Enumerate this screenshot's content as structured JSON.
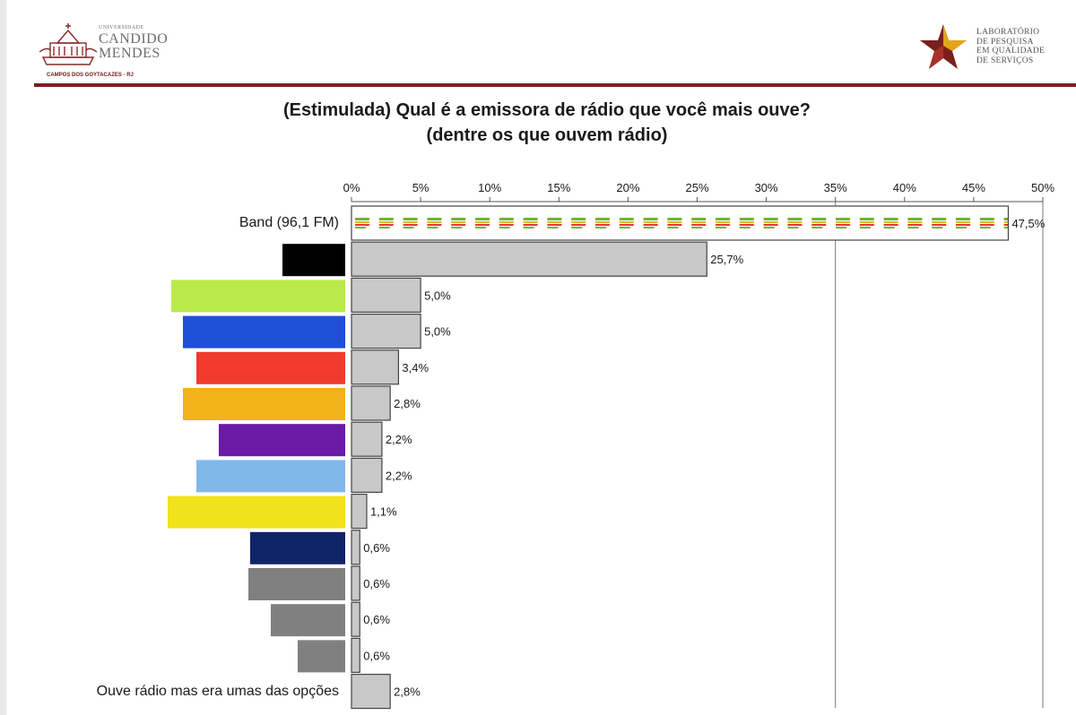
{
  "header": {
    "university": {
      "line1": "UNIVERSIDADE",
      "line2": "CANDIDO",
      "line3": "MENDES",
      "campus": "CAMPOS DOS GOYTACAZES - RJ",
      "icon": "building-seal-icon"
    },
    "lab": {
      "line1": "LABORATÓRIO",
      "line2": "DE PESQUISA",
      "line3": "EM QUALIDADE",
      "line4": "DE SERVIÇOS",
      "icon": "star-icon"
    },
    "rule_color": "#7a1f1f"
  },
  "chart_data": {
    "type": "bar",
    "orientation": "horizontal",
    "title": "(Estimulada) Qual é a emissora de rádio que você mais ouve?",
    "subtitle": "(dentre os que ouvem rádio)",
    "xlim": [
      0,
      50
    ],
    "x_ticks": [
      "0%",
      "5%",
      "10%",
      "15%",
      "20%",
      "25%",
      "30%",
      "35%",
      "40%",
      "45%",
      "50%"
    ],
    "unit": "%",
    "reference_line": 35,
    "categories": [
      {
        "label": "Band (96,1 FM)",
        "value": 47.5,
        "value_label": "47,5%",
        "swatch": null,
        "pattern": "band-logo"
      },
      {
        "label": "",
        "value": 25.7,
        "value_label": "25,7%",
        "swatch": "#000000"
      },
      {
        "label": "",
        "value": 5.0,
        "value_label": "5,0%",
        "swatch": "#b8ea4a"
      },
      {
        "label": "",
        "value": 5.0,
        "value_label": "5,0%",
        "swatch": "#1f4fd8"
      },
      {
        "label": "",
        "value": 3.4,
        "value_label": "3,4%",
        "swatch": "#f03a2e"
      },
      {
        "label": "",
        "value": 2.8,
        "value_label": "2,8%",
        "swatch": "#f2b21a"
      },
      {
        "label": "",
        "value": 2.2,
        "value_label": "2,2%",
        "swatch": "#6a1aa6"
      },
      {
        "label": "",
        "value": 2.2,
        "value_label": "2,2%",
        "swatch": "#80b8ea"
      },
      {
        "label": "",
        "value": 1.1,
        "value_label": "1,1%",
        "swatch": "#f2e21a"
      },
      {
        "label": "",
        "value": 0.6,
        "value_label": "0,6%",
        "swatch": "#10246a"
      },
      {
        "label": "",
        "value": 0.6,
        "value_label": "0,6%",
        "swatch": "#808080"
      },
      {
        "label": "",
        "value": 0.6,
        "value_label": "0,6%",
        "swatch": "#808080"
      },
      {
        "label": "",
        "value": 0.6,
        "value_label": "0,6%",
        "swatch": "#808080"
      },
      {
        "label": "Ouve rádio mas era umas das opções",
        "value": 2.8,
        "value_label": "2,8%",
        "swatch": null
      }
    ],
    "bar_color": "#c8c8c8",
    "grid": false,
    "legend": "none"
  }
}
